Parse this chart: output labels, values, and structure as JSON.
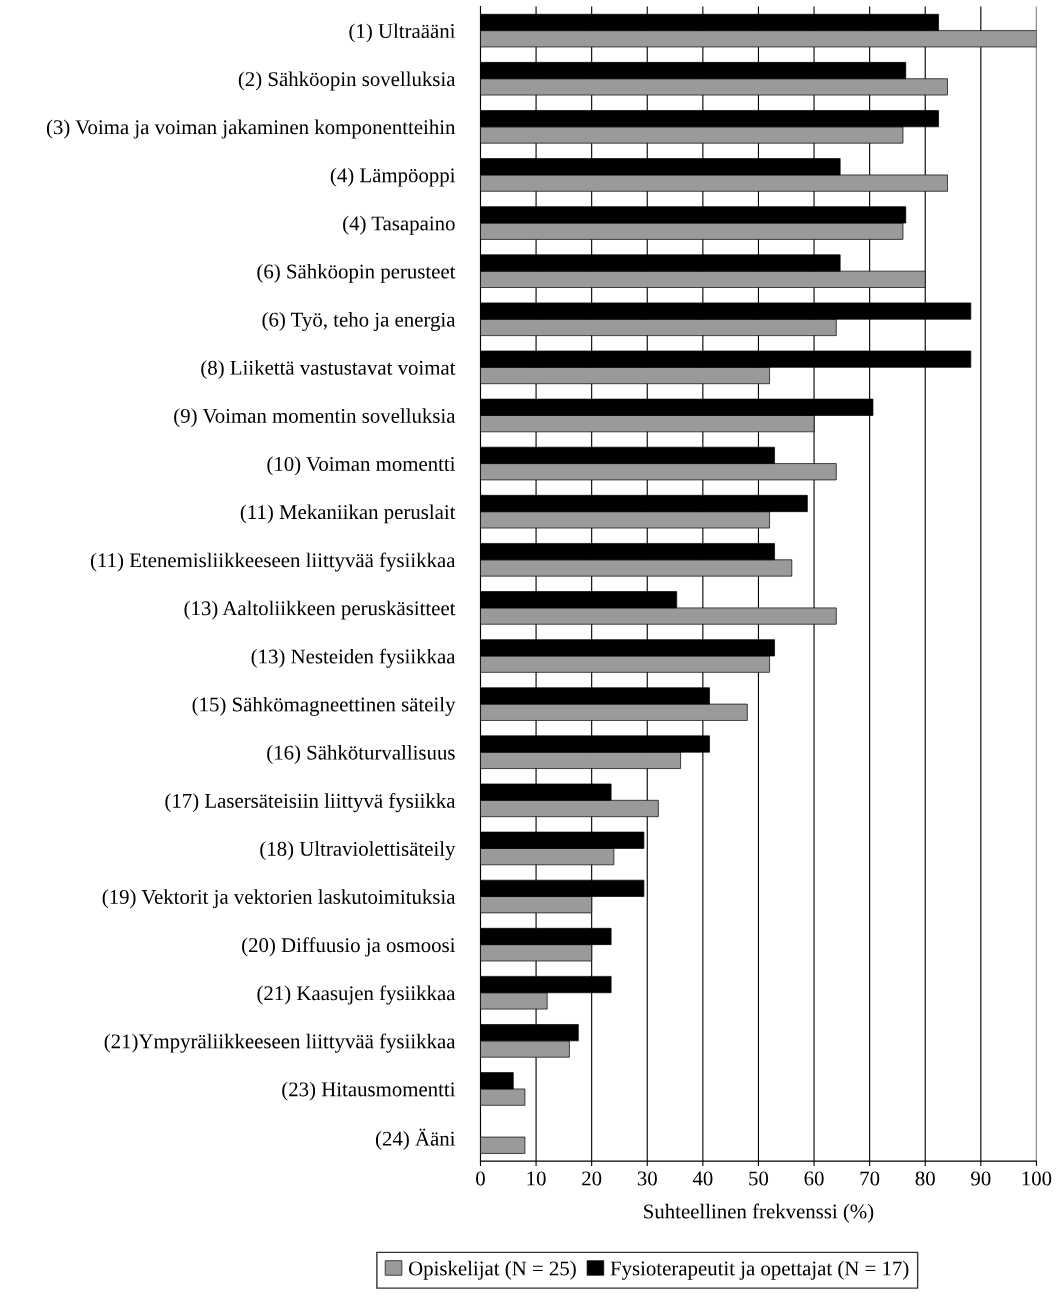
{
  "chart_data": {
    "type": "bar",
    "orientation": "horizontal",
    "xlabel": "Suhteellinen frekvenssi (%)",
    "categories": [
      "(1) Ultraääni",
      "(2) Sähköopin sovelluksia",
      "(3) Voima ja voiman jakaminen komponentteihin",
      "(4) Lämpöoppi",
      "(4) Tasapaino",
      "(6) Sähköopin perusteet",
      "(6) Työ, teho ja energia",
      "(8) Liikettä vastustavat voimat",
      "(9) Voiman momentin sovelluksia",
      "(10) Voiman momentti",
      "(11) Mekaniikan peruslait",
      "(11) Etenemisliikkeeseen liittyvää fysiikkaa",
      "(13) Aaltoliikkeen peruskäsitteet",
      "(13) Nesteiden fysiikkaa",
      "(15) Sähkömagneettinen säteily",
      "(16) Sähköturvallisuus",
      "(17) Lasersäteisiin liittyvä fysiikka",
      "(18) Ultraviolettisäteily",
      "(19) Vektorit ja vektorien laskutoimituksia",
      "(20) Diffuusio ja osmoosi",
      "(21) Kaasujen fysiikkaa",
      "(21)Ympyräliikkeeseen liittyvää fysiikkaa",
      "(23) Hitausmomentti",
      "(24) Ääni"
    ],
    "series": [
      {
        "name": "Opiskelijat (N = 25)",
        "color": "#9a9a9a",
        "values": [
          100,
          84,
          76,
          84,
          76,
          80,
          64,
          52,
          60,
          64,
          52,
          56,
          64,
          52,
          48,
          36,
          32,
          24,
          20,
          20,
          12,
          16,
          8,
          8
        ]
      },
      {
        "name": "Fysioterapeutit ja opettajat (N = 17)",
        "color": "#000000",
        "values": [
          82.4,
          76.5,
          82.4,
          64.7,
          76.5,
          64.7,
          88.2,
          88.2,
          70.6,
          52.9,
          58.8,
          52.9,
          35.3,
          52.9,
          41.2,
          41.2,
          23.5,
          29.4,
          29.4,
          23.5,
          23.5,
          17.6,
          5.9,
          null
        ]
      }
    ],
    "xlim": [
      0,
      100
    ],
    "xticks": [
      0,
      10,
      20,
      30,
      40,
      50,
      60,
      70,
      80,
      90,
      100
    ],
    "grid": "x",
    "legend": "bottom"
  }
}
